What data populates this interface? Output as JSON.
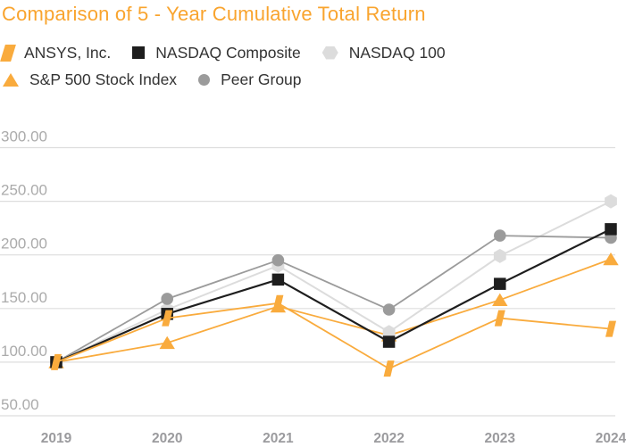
{
  "title": {
    "text": "Comparison of 5 - Year Cumulative Total Return"
  },
  "colors": {
    "title_orange": "#F9A42E",
    "series_orange": "#F9AB3D",
    "series_black": "#1E1E1E",
    "series_light_gray": "#DCDCDC",
    "series_gray": "#9B9B9B",
    "gridline": "#DDDDDD",
    "y_axis_text": "#ABABAB",
    "x_axis_text": "#9B9B9E",
    "legend_text": "#333333"
  },
  "legend": {
    "items": [
      {
        "label": "ANSYS, Inc.",
        "marker": "slash",
        "color": "#F9AB3D"
      },
      {
        "label": "NASDAQ Composite",
        "marker": "square",
        "color": "#1E1E1E"
      },
      {
        "label": "NASDAQ 100",
        "marker": "hexagon",
        "color": "#DCDCDC"
      },
      {
        "label": "S&P 500 Stock Index",
        "marker": "triangle",
        "color": "#F9AB3D"
      },
      {
        "label": "Peer Group",
        "marker": "circle",
        "color": "#9B9B9B"
      }
    ]
  },
  "chart_data": {
    "type": "line",
    "title": "Comparison of 5 - Year Cumulative Total Return",
    "x": [
      "2019",
      "2020",
      "2021",
      "2022",
      "2023",
      "2024"
    ],
    "series": [
      {
        "name": "S&P 500 Stock Index",
        "marker": "triangle",
        "color": "#F9AB3D",
        "line_width": 1.8,
        "values": [
          100,
          118,
          152,
          125,
          158,
          196
        ]
      },
      {
        "name": "NASDAQ 100",
        "marker": "hexagon",
        "color": "#DCDCDC",
        "line_width": 2.0,
        "values": [
          100,
          149,
          190,
          128,
          199,
          250
        ]
      },
      {
        "name": "Peer Group",
        "marker": "circle",
        "color": "#9B9B9B",
        "line_width": 1.8,
        "values": [
          100,
          159,
          195,
          149,
          218,
          216
        ]
      },
      {
        "name": "NASDAQ Composite",
        "marker": "square",
        "color": "#1E1E1E",
        "line_width": 2.2,
        "values": [
          100,
          145,
          177,
          119,
          173,
          224
        ]
      },
      {
        "name": "ANSYS, Inc.",
        "marker": "slash",
        "color": "#F9AB3D",
        "line_width": 1.8,
        "values": [
          100,
          141,
          155,
          94,
          141,
          131
        ]
      }
    ],
    "y_ticks": [
      300,
      250,
      200,
      150,
      100,
      50
    ],
    "y_tick_labels": [
      "300.00",
      "250.00",
      "200.00",
      "150.00",
      "100.00",
      "50.00"
    ],
    "ylim": [
      50,
      300
    ],
    "grid": true,
    "legend_position": "top-left",
    "note": "series listed in draw order (back to front); legend order is ANSYS, NASDAQ Composite, NASDAQ 100, S&P 500, Peer Group"
  }
}
